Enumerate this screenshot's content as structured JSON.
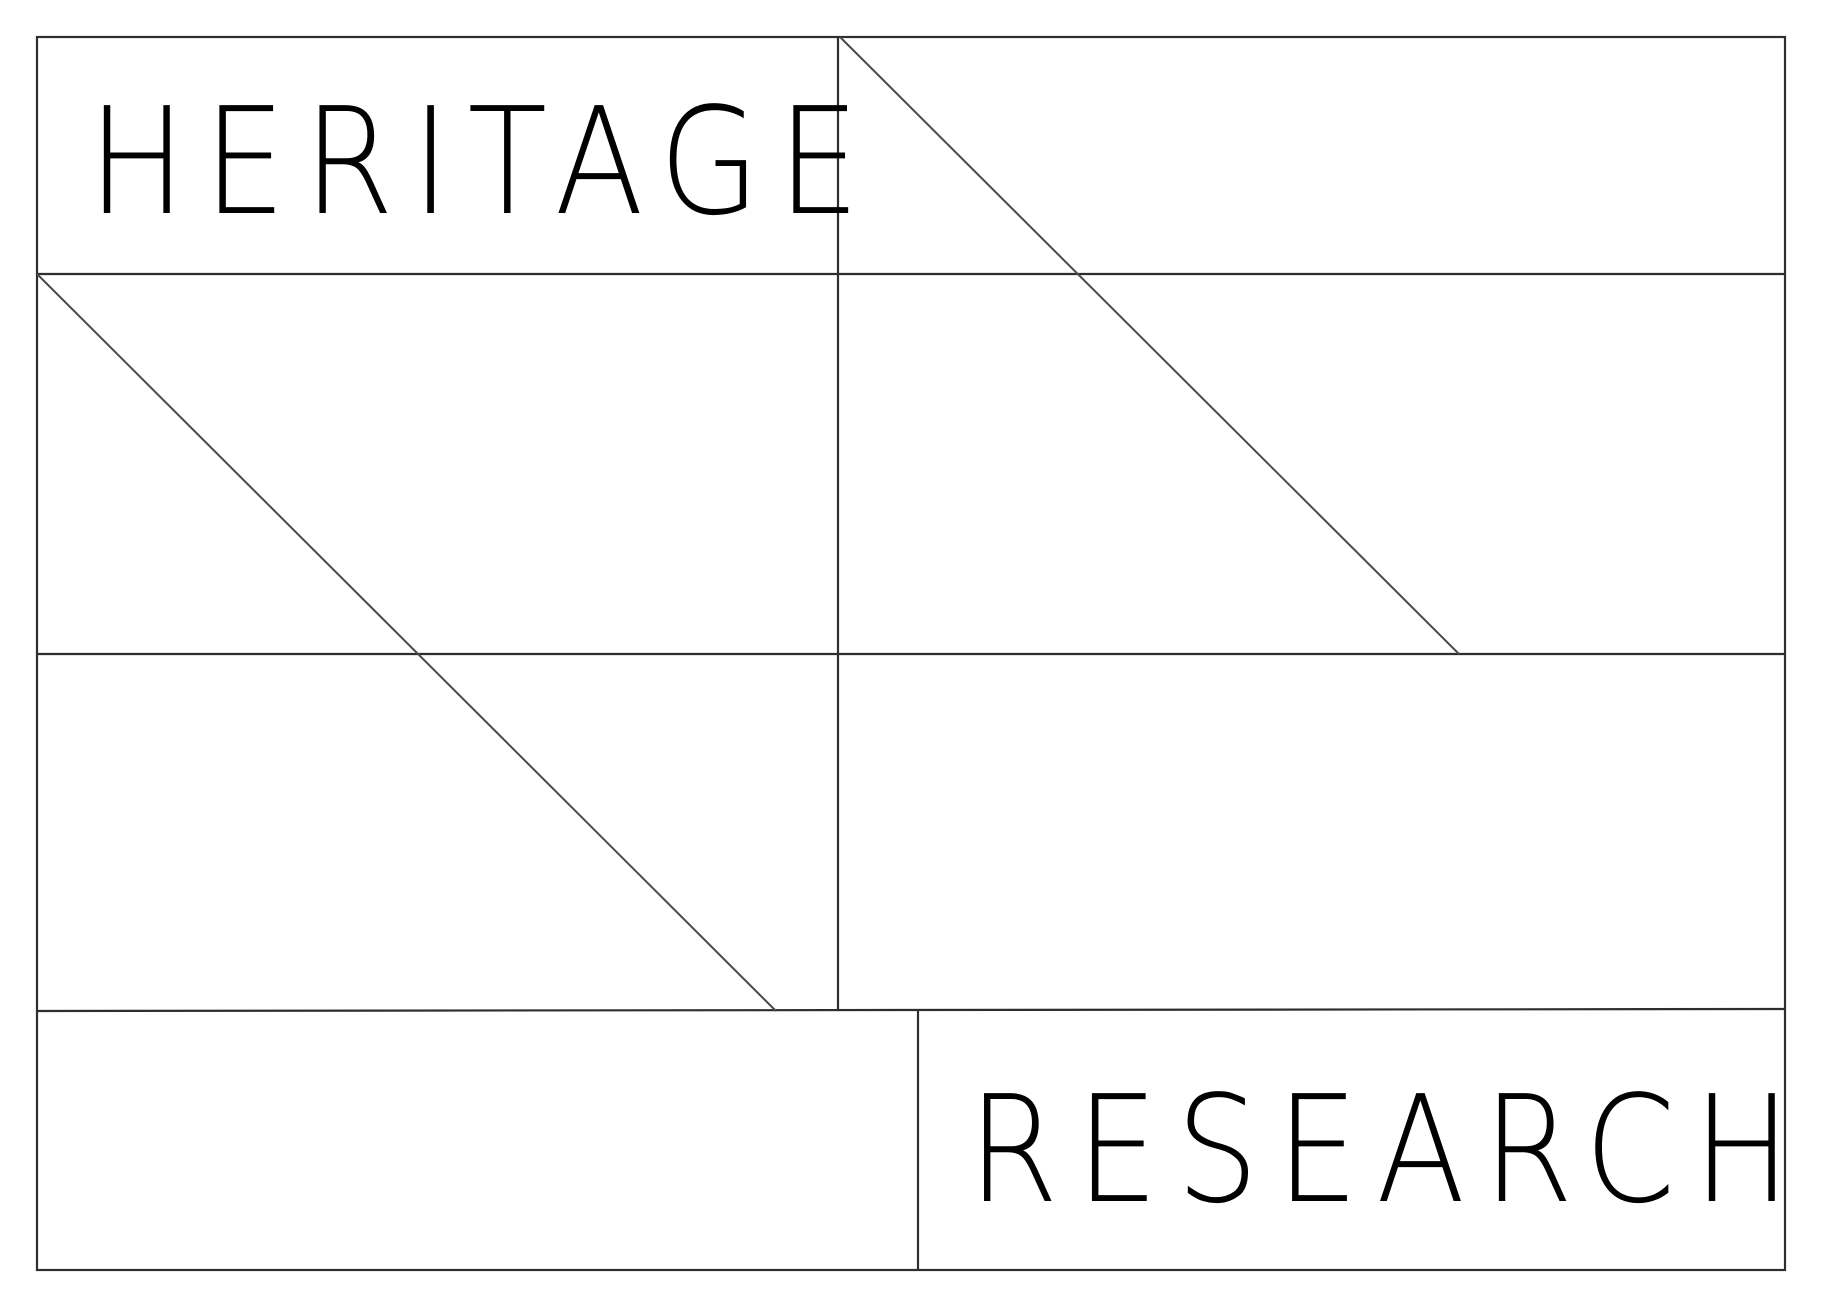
{
  "logo": {
    "word_top": "HERITAGE",
    "word_bottom": "RESEARCH",
    "line_color": "#2e2e2e",
    "text_color": "#000000",
    "background": "#ffffff"
  }
}
